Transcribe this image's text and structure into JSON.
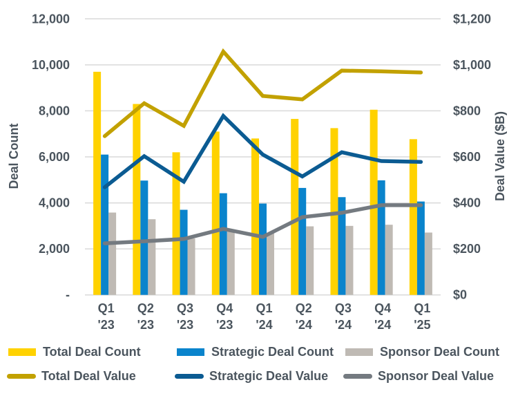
{
  "chart_data": {
    "type": "bar",
    "title": "",
    "categories": [
      [
        "Q1",
        "'23"
      ],
      [
        "Q2",
        "'23"
      ],
      [
        "Q3",
        "'23"
      ],
      [
        "Q4",
        "'23"
      ],
      [
        "Q1",
        "'24"
      ],
      [
        "Q2",
        "'24"
      ],
      [
        "Q3",
        "'24"
      ],
      [
        "Q4",
        "'24"
      ],
      [
        "Q1",
        "'25"
      ]
    ],
    "ylabel": "Deal Count",
    "y2label": "Deal Value ($B)",
    "ylim": [
      0,
      12000
    ],
    "y2lim": [
      0,
      1200
    ],
    "yticks": [
      "-",
      "2,000",
      "4,000",
      "6,000",
      "8,000",
      "10,000",
      "12,000"
    ],
    "y2ticks": [
      "$0",
      "$200",
      "$400",
      "$600",
      "$800",
      "$1,000",
      "$1,200"
    ],
    "grid": true,
    "legend_position": "bottom",
    "bar_series": [
      {
        "name": "Total Deal Count",
        "color": "#FFD200",
        "axis": "left",
        "values": [
          9700,
          8300,
          6200,
          7100,
          6800,
          7650,
          7250,
          8050,
          6770
        ]
      },
      {
        "name": "Strategic Deal Count",
        "color": "#0A84CC",
        "axis": "left",
        "values": [
          6100,
          4970,
          3700,
          4420,
          3970,
          4650,
          4250,
          4980,
          4060
        ]
      },
      {
        "name": "Sponsor Deal Count",
        "color": "#BFBAB4",
        "axis": "left",
        "values": [
          3580,
          3290,
          2450,
          2750,
          2680,
          2980,
          3000,
          3050,
          2710
        ]
      }
    ],
    "line_series": [
      {
        "name": "Total Deal Value",
        "color": "#C2A100",
        "axis": "right",
        "values": [
          690,
          833,
          735,
          1058,
          865,
          850,
          975,
          972,
          967
        ]
      },
      {
        "name": "Strategic Deal Value",
        "color": "#0B5B92",
        "axis": "right",
        "values": [
          468,
          603,
          492,
          778,
          610,
          515,
          620,
          582,
          578
        ]
      },
      {
        "name": "Sponsor Deal Value",
        "color": "#747A80",
        "axis": "right",
        "values": [
          224,
          233,
          243,
          287,
          252,
          338,
          357,
          390,
          390
        ]
      }
    ]
  },
  "legend": [
    {
      "label": "Total Deal Count",
      "kind": "bar",
      "color": "#FFD200"
    },
    {
      "label": "Strategic Deal Count",
      "kind": "bar",
      "color": "#0A84CC"
    },
    {
      "label": "Sponsor Deal Count",
      "kind": "bar",
      "color": "#BFBAB4"
    },
    {
      "label": "Total Deal Value",
      "kind": "line",
      "color": "#C2A100"
    },
    {
      "label": "Strategic Deal Value",
      "kind": "line",
      "color": "#0B5B92"
    },
    {
      "label": "Sponsor Deal Value",
      "kind": "line",
      "color": "#747A80"
    }
  ]
}
